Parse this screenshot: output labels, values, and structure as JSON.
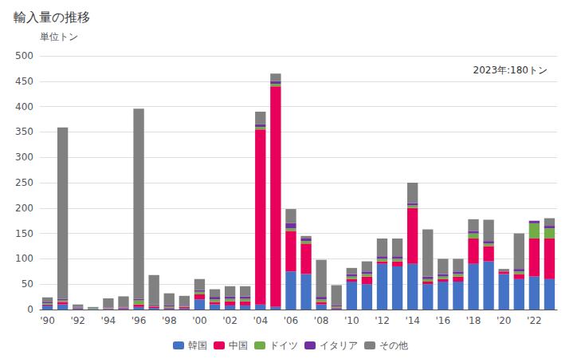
{
  "chart_data": {
    "type": "bar",
    "title": "輸入量の推移",
    "ylabel": "単位トン",
    "annotation": "2023年:180トン",
    "stacked": true,
    "grid": true,
    "legend": "bottom",
    "categories": [
      "'90",
      null,
      "'92",
      null,
      "'94",
      null,
      "'96",
      null,
      "'98",
      null,
      "'00",
      null,
      "'02",
      null,
      "'04",
      null,
      "'06",
      null,
      "'08",
      null,
      "'10",
      null,
      "'12",
      null,
      "'14",
      null,
      "'16",
      null,
      "'18",
      null,
      "'20",
      null,
      "'22",
      null
    ],
    "ylim": [
      0,
      500
    ],
    "yticks": [
      0,
      50,
      100,
      150,
      200,
      250,
      300,
      350,
      400,
      450,
      500
    ],
    "series": [
      {
        "name": "韓国",
        "color": "#4472c4",
        "values": [
          8,
          10,
          2,
          1,
          1,
          2,
          5,
          3,
          2,
          2,
          20,
          10,
          8,
          8,
          10,
          5,
          75,
          70,
          10,
          2,
          55,
          50,
          90,
          85,
          90,
          50,
          55,
          55,
          90,
          95,
          70,
          60,
          65,
          60
        ]
      },
      {
        "name": "中国",
        "color": "#e8005a",
        "values": [
          2,
          5,
          1,
          0,
          1,
          2,
          5,
          3,
          2,
          3,
          10,
          5,
          8,
          8,
          345,
          435,
          80,
          60,
          5,
          2,
          5,
          15,
          5,
          10,
          110,
          5,
          5,
          10,
          50,
          30,
          5,
          10,
          75,
          80
        ]
      },
      {
        "name": "ドイツ",
        "color": "#70ad47",
        "values": [
          2,
          3,
          1,
          1,
          1,
          1,
          8,
          2,
          2,
          2,
          5,
          5,
          5,
          5,
          5,
          5,
          5,
          5,
          5,
          2,
          5,
          5,
          5,
          5,
          5,
          5,
          5,
          5,
          10,
          5,
          0,
          5,
          30,
          20
        ]
      },
      {
        "name": "イタリア",
        "color": "#7030a0",
        "values": [
          2,
          3,
          1,
          0,
          1,
          1,
          3,
          2,
          2,
          2,
          3,
          5,
          5,
          5,
          5,
          5,
          10,
          5,
          5,
          2,
          5,
          5,
          5,
          5,
          5,
          5,
          5,
          5,
          5,
          5,
          0,
          5,
          5,
          5
        ]
      },
      {
        "name": "その他",
        "color": "#808080",
        "values": [
          10,
          338,
          5,
          3,
          18,
          20,
          375,
          58,
          24,
          18,
          22,
          15,
          20,
          20,
          25,
          15,
          28,
          5,
          73,
          40,
          12,
          20,
          35,
          35,
          40,
          93,
          30,
          25,
          23,
          42,
          5,
          70,
          0,
          15
        ]
      }
    ]
  }
}
